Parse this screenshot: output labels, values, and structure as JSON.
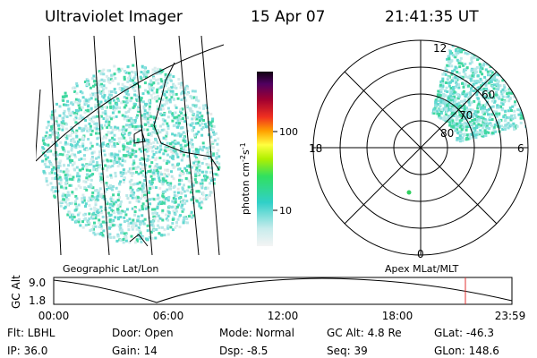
{
  "header": {
    "title": "Ultraviolet Imager",
    "date": "15 Apr 07",
    "time": "21:41:35 UT"
  },
  "left_panel": {
    "label": "Geographic Lat/Lon"
  },
  "right_panel": {
    "label": "Apex MLat/MLT",
    "mlt_labels": [
      "12",
      "18",
      "6",
      "0"
    ],
    "lat_labels": [
      "60",
      "70",
      "80"
    ]
  },
  "colorbar": {
    "ticks": [
      "100",
      "10"
    ],
    "unit": "photon cm",
    "exp1": "-2",
    "unit2": "s",
    "exp2": "-1"
  },
  "timeline": {
    "axis_label": "GC Alt",
    "ticks_y": [
      "9.0",
      "1.8"
    ],
    "ticks_x": [
      "00:00",
      "06:00",
      "12:00",
      "18:00",
      "23:59"
    ]
  },
  "footer": {
    "rows": [
      [
        "Flt: LBHL",
        "Door: Open",
        "Mode: Normal",
        "GC Alt: 4.8 Re",
        "GLat: -46.3"
      ],
      [
        "IP: 36.0",
        "Gain: 14",
        "Dsp:   -8.5",
        "Seq: 39",
        "GLon: 148.6"
      ]
    ]
  }
}
